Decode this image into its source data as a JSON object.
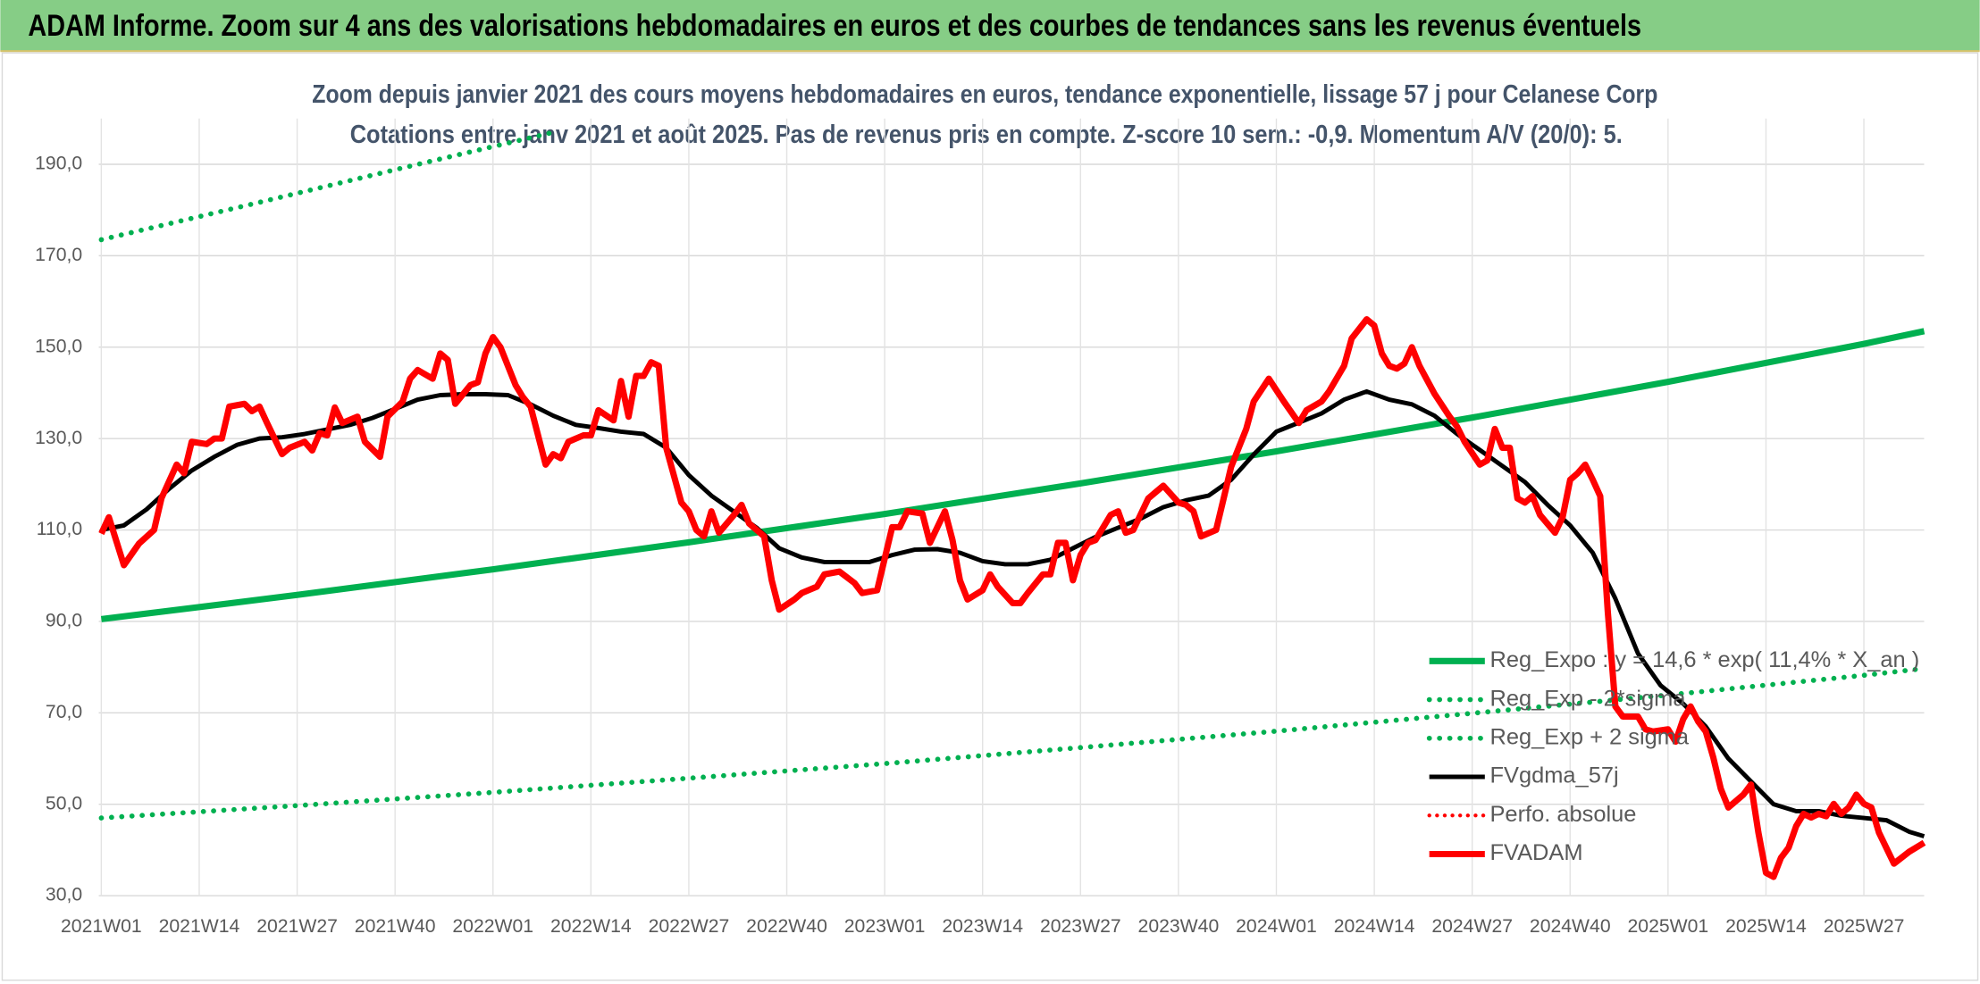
{
  "header": {
    "title": "ADAM Informe. Zoom sur 4 ans des valorisations hebdomadaires en euros et des courbes de tendances sans les revenus éventuels"
  },
  "chart_data": {
    "type": "line",
    "title": "Zoom depuis janvier 2021 des cours moyens hebdomadaires en euros, tendance exponentielle, lissage 57 j pour Celanese Corp",
    "subtitle": "Cotations entre janv 2021 et août 2025. Pas de revenus pris en compte. Z-score 10 sem.: -0,9. Momentum A/V (20/0): 5.",
    "xlim": [
      0,
      242
    ],
    "xticks": [
      {
        "value": 0,
        "label": "2021W01"
      },
      {
        "value": 13,
        "label": "2021W14"
      },
      {
        "value": 26,
        "label": "2021W27"
      },
      {
        "value": 39,
        "label": "2021W40"
      },
      {
        "value": 52,
        "label": "2022W01"
      },
      {
        "value": 65,
        "label": "2022W14"
      },
      {
        "value": 78,
        "label": "2022W27"
      },
      {
        "value": 91,
        "label": "2022W40"
      },
      {
        "value": 104,
        "label": "2023W01"
      },
      {
        "value": 117,
        "label": "2023W14"
      },
      {
        "value": 130,
        "label": "2023W27"
      },
      {
        "value": 143,
        "label": "2023W40"
      },
      {
        "value": 156,
        "label": "2024W01"
      },
      {
        "value": 169,
        "label": "2024W14"
      },
      {
        "value": 182,
        "label": "2024W27"
      },
      {
        "value": 195,
        "label": "2024W40"
      },
      {
        "value": 208,
        "label": "2025W01"
      },
      {
        "value": 221,
        "label": "2025W14"
      },
      {
        "value": 234,
        "label": "2025W27"
      }
    ],
    "ylim": [
      30,
      200
    ],
    "yticks": [
      {
        "value": 30,
        "label": "30,0"
      },
      {
        "value": 50,
        "label": "50,0"
      },
      {
        "value": 70,
        "label": "70,0"
      },
      {
        "value": 90,
        "label": "90,0"
      },
      {
        "value": 110,
        "label": "110,0"
      },
      {
        "value": 130,
        "label": "130,0"
      },
      {
        "value": 150,
        "label": "150,0"
      },
      {
        "value": 170,
        "label": "170,0"
      },
      {
        "value": 190,
        "label": "190,0"
      }
    ],
    "grid": true,
    "legend": "bottom-right",
    "series": [
      {
        "name": "Reg_Expo : y = 14,6 * exp( 11,4% * X_an )",
        "color": "#00b050",
        "style": "solid",
        "width": 5,
        "x": [
          0,
          26,
          52,
          78,
          104,
          130,
          156,
          182,
          208,
          234,
          242
        ],
        "values": [
          90.5,
          95.8,
          101.4,
          107.3,
          113.5,
          120.2,
          127.2,
          134.6,
          142.4,
          150.7,
          153.5
        ]
      },
      {
        "name": "Reg_Exp - 2*sigma",
        "color": "#00b050",
        "style": "dotted",
        "width": 4,
        "x": [
          0,
          26,
          52,
          78,
          104,
          130,
          156,
          182,
          208,
          234,
          242
        ],
        "values": [
          47,
          49.7,
          52.6,
          55.7,
          58.9,
          62.4,
          66,
          69.9,
          73.9,
          78.2,
          79.7
        ]
      },
      {
        "name": "Reg_Exp + 2 sigma",
        "color": "#00b050",
        "style": "dotted",
        "width": 4,
        "x": [
          0,
          20,
          40,
          60
        ],
        "values": [
          173.5,
          181.3,
          189.2,
          197
        ]
      },
      {
        "name": "FVgdma_57j",
        "color": "#000000",
        "style": "solid",
        "width": 3.5,
        "x": [
          0,
          3,
          6,
          9,
          12,
          15,
          18,
          21,
          24,
          27,
          30,
          33,
          36,
          39,
          42,
          45,
          48,
          51,
          54,
          57,
          60,
          63,
          66,
          69,
          72,
          75,
          78,
          81,
          84,
          87,
          90,
          93,
          96,
          99,
          102,
          105,
          108,
          111,
          114,
          117,
          120,
          123,
          126,
          129,
          132,
          135,
          138,
          141,
          144,
          147,
          150,
          153,
          156,
          159,
          162,
          165,
          168,
          171,
          174,
          177,
          180,
          183,
          186,
          189,
          192,
          195,
          198,
          201,
          204,
          207,
          210,
          213,
          216,
          219,
          222,
          225,
          228,
          231,
          234,
          237,
          240,
          242
        ],
        "values": [
          110,
          111,
          114.5,
          119,
          123,
          126,
          128.6,
          130,
          130.3,
          131,
          132,
          133,
          134.5,
          136.5,
          138.5,
          139.5,
          139.7,
          139.7,
          139.5,
          137.5,
          135,
          133,
          132.3,
          131.5,
          131,
          128,
          122,
          117.5,
          114,
          110.5,
          106,
          104,
          103,
          103,
          103,
          104.5,
          105.7,
          105.8,
          105,
          103.2,
          102.5,
          102.5,
          103.5,
          106,
          108.5,
          110.5,
          112.5,
          115,
          116.5,
          117.5,
          121,
          126.5,
          131.5,
          133.5,
          135.5,
          138.5,
          140.3,
          138.5,
          137.5,
          135,
          131,
          127.5,
          124,
          120.5,
          115.5,
          111,
          105,
          95,
          83,
          76,
          72,
          67,
          60,
          55,
          50,
          48.5,
          48.5,
          47.5,
          47,
          46.5,
          44,
          43
        ]
      },
      {
        "name": "Perfo. absolue",
        "color": "#ff0000",
        "style": "dotted",
        "width": 3,
        "x": [],
        "values": []
      },
      {
        "name": "FVADAM",
        "color": "#ff0000",
        "style": "solid",
        "width": 5,
        "x": [
          0,
          1,
          3,
          5,
          7,
          8,
          10,
          11,
          12,
          14,
          15,
          16,
          17,
          19,
          20,
          21,
          22,
          24,
          25,
          27,
          28,
          29,
          30,
          31,
          32,
          34,
          35,
          37,
          38,
          40,
          41,
          42,
          44,
          45,
          46,
          47,
          49,
          50,
          51,
          52,
          53,
          55,
          56,
          57,
          59,
          60,
          61,
          62,
          64,
          65,
          66,
          68,
          69,
          70,
          71,
          72,
          73,
          74,
          75,
          77,
          78,
          79,
          80,
          81,
          82,
          84,
          85,
          86,
          88,
          89,
          90,
          92,
          93,
          95,
          96,
          98,
          100,
          101,
          103,
          105,
          106,
          107,
          109,
          110,
          112,
          113,
          114,
          115,
          117,
          118,
          119,
          121,
          122,
          123,
          125,
          126,
          127,
          128,
          129,
          130,
          131,
          132,
          134,
          135,
          136,
          137,
          139,
          140,
          141,
          143,
          144,
          145,
          146,
          148,
          149,
          150,
          152,
          153,
          155,
          157,
          159,
          160,
          162,
          163,
          165,
          166,
          168,
          169,
          170,
          171,
          172,
          173,
          174,
          175,
          177,
          179,
          180,
          181,
          183,
          184,
          185,
          186,
          187,
          188,
          189,
          190,
          191,
          193,
          194,
          195,
          196,
          197,
          198,
          199,
          200,
          201,
          202,
          204,
          205,
          206,
          208,
          209,
          210,
          211,
          212,
          213,
          214,
          215,
          216,
          218,
          219,
          220,
          221,
          222,
          223,
          224,
          225,
          226,
          227,
          228,
          229,
          230,
          231,
          232,
          233,
          234,
          235,
          236,
          238,
          240,
          242
        ],
        "values": [
          109.2,
          112.8,
          102.3,
          107,
          110,
          117,
          124.3,
          122.4,
          129.3,
          128.8,
          130,
          130,
          137,
          137.6,
          136,
          137,
          133.4,
          126.6,
          128,
          129.3,
          127.4,
          131.2,
          130.7,
          136.8,
          133.4,
          134.8,
          129.3,
          126,
          134.8,
          138.1,
          143.1,
          145,
          143.1,
          148.6,
          147.2,
          137.6,
          141.7,
          142.3,
          148.6,
          152.2,
          150,
          141.7,
          139,
          137,
          124.3,
          126.6,
          125.7,
          129.3,
          130.7,
          130.7,
          136.2,
          134,
          142.6,
          134.8,
          143.7,
          143.7,
          146.7,
          145.9,
          128,
          116,
          114.1,
          110,
          108.6,
          114.1,
          109.4,
          113.3,
          115.5,
          111.4,
          108.6,
          99,
          92.6,
          94.8,
          96.2,
          97.6,
          100.3,
          100.9,
          98.4,
          96.2,
          96.8,
          110.6,
          110.6,
          114.1,
          113.6,
          107.2,
          114.1,
          107.8,
          99,
          94.8,
          96.8,
          100.3,
          97.6,
          94,
          94,
          96.2,
          100.3,
          100.3,
          107.2,
          107.2,
          99,
          104.5,
          107.2,
          107.8,
          113.3,
          114.1,
          109.4,
          110,
          116.9,
          118.3,
          119.7,
          116,
          115.5,
          114.1,
          108.6,
          110,
          116.9,
          123.8,
          132.1,
          138.1,
          143.1,
          138.1,
          133.4,
          136.2,
          138.1,
          140.3,
          145.9,
          151.9,
          156.1,
          154.7,
          148.6,
          145.9,
          145.3,
          146.4,
          150,
          145.9,
          139.8,
          134.8,
          132.6,
          129.3,
          124.3,
          125.2,
          132.1,
          128,
          128,
          116.9,
          116,
          117.4,
          113.3,
          109.4,
          112.8,
          121,
          122.4,
          124.3,
          121,
          117.4,
          92.1,
          71.4,
          69.2,
          69.2,
          66.4,
          65.9,
          66.4,
          63.7,
          68.6,
          71.4,
          68.1,
          65.9,
          60.3,
          53.4,
          49.3,
          52.1,
          54.3,
          43.8,
          35,
          34.1,
          38.3,
          40.5,
          45.2,
          47.9,
          47.1,
          47.9,
          47.4,
          50.1,
          47.9,
          49.3,
          52.1,
          50.1,
          49.3,
          43.8,
          37,
          39.6,
          41.6
        ]
      }
    ]
  }
}
